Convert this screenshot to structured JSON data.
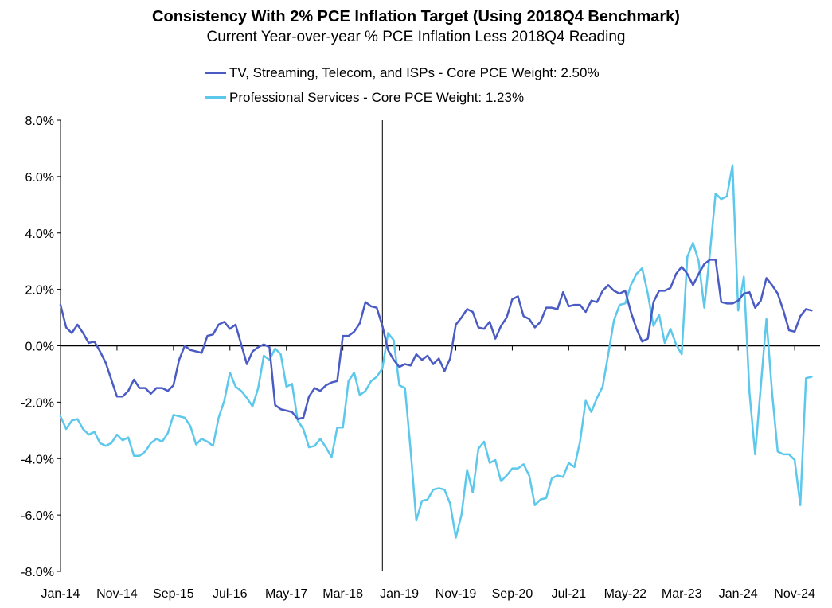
{
  "chart_data": {
    "type": "line",
    "title": "Consistency With 2% PCE Inflation Target (Using 2018Q4 Benchmark)",
    "subtitle": "Current Year-over-year % PCE Inflation Less 2018Q4 Reading",
    "ylim": [
      -8,
      8
    ],
    "yticks": [
      "8.0%",
      "6.0%",
      "4.0%",
      "2.0%",
      "0.0%",
      "-2.0%",
      "-4.0%",
      "-6.0%",
      "-8.0%"
    ],
    "ytick_values": [
      8,
      6,
      4,
      2,
      0,
      -2,
      -4,
      -6,
      -8
    ],
    "xticks": [
      "Jan-14",
      "Nov-14",
      "Sep-15",
      "Jul-16",
      "May-17",
      "Mar-18",
      "Jan-19",
      "Nov-19",
      "Sep-20",
      "Jul-21",
      "May-22",
      "Mar-23",
      "Jan-24",
      "Nov-24"
    ],
    "xtick_months": [
      0,
      10,
      20,
      30,
      40,
      50,
      60,
      70,
      80,
      90,
      100,
      110,
      120,
      130
    ],
    "x_start": "Jan-14",
    "x_end": "Mar-25",
    "benchmark_line": "Oct-18",
    "grid": false,
    "legend_position": "top-center",
    "series": [
      {
        "name": "TV, Streaming, Telecom, and ISPs - Core PCE Weight: 2.50%",
        "color": "#4a5bc4",
        "values": [
          1.45,
          0.65,
          0.45,
          0.75,
          0.45,
          0.1,
          0.15,
          -0.2,
          -0.6,
          -1.2,
          -1.8,
          -1.8,
          -1.6,
          -1.2,
          -1.5,
          -1.5,
          -1.7,
          -1.5,
          -1.5,
          -1.6,
          -1.4,
          -0.5,
          0.0,
          -0.15,
          -0.2,
          -0.25,
          0.35,
          0.4,
          0.75,
          0.85,
          0.6,
          0.75,
          0.05,
          -0.65,
          -0.2,
          -0.05,
          0.05,
          -0.05,
          -2.1,
          -2.25,
          -2.3,
          -2.35,
          -2.6,
          -2.55,
          -1.8,
          -1.5,
          -1.6,
          -1.4,
          -1.3,
          -1.25,
          0.35,
          0.35,
          0.5,
          0.8,
          1.55,
          1.4,
          1.35,
          0.7,
          -0.15,
          -0.5,
          -0.75,
          -0.65,
          -0.7,
          -0.3,
          -0.5,
          -0.35,
          -0.65,
          -0.45,
          -0.9,
          -0.45,
          0.75,
          1.0,
          1.3,
          1.2,
          0.65,
          0.6,
          0.85,
          0.25,
          0.7,
          1.0,
          1.65,
          1.75,
          1.05,
          0.95,
          0.65,
          0.85,
          1.35,
          1.35,
          1.3,
          1.9,
          1.4,
          1.45,
          1.45,
          1.2,
          1.6,
          1.55,
          1.95,
          2.15,
          1.95,
          1.85,
          1.95,
          1.2,
          0.6,
          0.15,
          0.25,
          1.55,
          1.95,
          1.95,
          2.05,
          2.55,
          2.8,
          2.55,
          2.15,
          2.55,
          2.9,
          3.05,
          3.05,
          1.55,
          1.5,
          1.5,
          1.6,
          1.85,
          1.9,
          1.35,
          1.6,
          2.4,
          2.15,
          1.85,
          1.25,
          0.55,
          0.5,
          1.05,
          1.3,
          1.25
        ],
        "start": "Jan-14"
      },
      {
        "name": "Professional Services - Core PCE Weight: 1.23%",
        "color": "#5cc8ec",
        "values": [
          -2.5,
          -2.95,
          -2.65,
          -2.6,
          -2.95,
          -3.15,
          -3.05,
          -3.45,
          -3.55,
          -3.45,
          -3.15,
          -3.35,
          -3.25,
          -3.9,
          -3.9,
          -3.75,
          -3.45,
          -3.3,
          -3.4,
          -3.1,
          -2.45,
          -2.5,
          -2.55,
          -2.85,
          -3.5,
          -3.3,
          -3.4,
          -3.55,
          -2.55,
          -1.95,
          -0.95,
          -1.45,
          -1.6,
          -1.85,
          -2.15,
          -1.5,
          -0.35,
          -0.5,
          -0.1,
          -0.3,
          -1.45,
          -1.35,
          -2.65,
          -2.95,
          -3.6,
          -3.55,
          -3.3,
          -3.6,
          -3.95,
          -2.9,
          -2.9,
          -1.25,
          -0.95,
          -1.75,
          -1.6,
          -1.25,
          -1.1,
          -0.8,
          0.45,
          0.2,
          -1.4,
          -1.5,
          -3.7,
          -6.2,
          -5.5,
          -5.45,
          -5.1,
          -5.05,
          -5.1,
          -5.6,
          -6.8,
          -6.0,
          -4.4,
          -5.2,
          -3.65,
          -3.4,
          -4.15,
          -4.05,
          -4.8,
          -4.6,
          -4.35,
          -4.35,
          -4.2,
          -4.6,
          -5.65,
          -5.45,
          -5.4,
          -4.7,
          -4.6,
          -4.65,
          -4.15,
          -4.3,
          -3.4,
          -1.95,
          -2.35,
          -1.85,
          -1.45,
          -0.3,
          0.9,
          1.45,
          1.5,
          2.15,
          2.55,
          2.75,
          1.85,
          0.7,
          1.1,
          0.1,
          0.6,
          0.05,
          -0.3,
          3.15,
          3.65,
          3.0,
          1.35,
          3.3,
          5.4,
          5.2,
          5.3,
          6.4,
          1.25,
          2.45,
          -1.65,
          -3.85,
          -1.45,
          0.95,
          -1.65,
          -3.75,
          -3.85,
          -3.85,
          -4.05,
          -5.65,
          -1.15,
          -1.1
        ],
        "start": "Jan-14"
      }
    ]
  }
}
